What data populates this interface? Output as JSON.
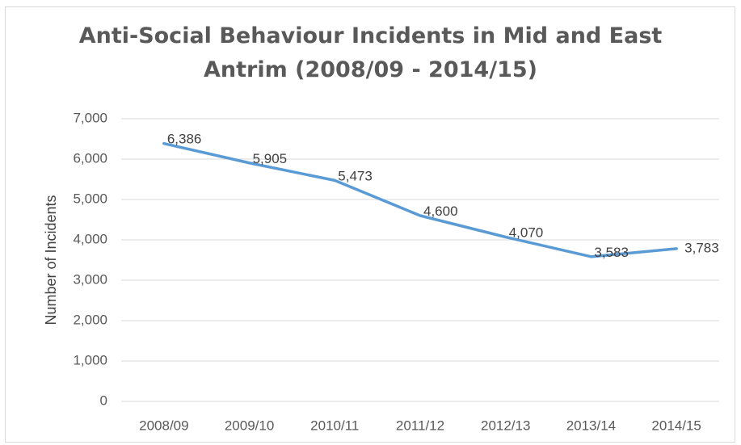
{
  "chart_data": {
    "type": "line",
    "title_lines": [
      "Anti-Social Behaviour Incidents in Mid and East",
      "Antrim (2008/09 - 2014/15)"
    ],
    "ylabel": "Number of Incidents",
    "xlabel": "",
    "categories": [
      "2008/09",
      "2009/10",
      "2010/11",
      "2011/12",
      "2012/13",
      "2013/14",
      "2014/15"
    ],
    "values": [
      6386,
      5905,
      5473,
      4600,
      4070,
      3583,
      3783
    ],
    "data_labels": [
      "6,386",
      "5,905",
      "5,473",
      "4,600",
      "4,070",
      "3,583",
      "3,783"
    ],
    "yticks": [
      "0",
      "1,000",
      "2,000",
      "3,000",
      "4,000",
      "5,000",
      "6,000",
      "7,000"
    ],
    "ylim": [
      0,
      7000
    ],
    "grid": true,
    "line_color": "#5b9bd5"
  }
}
